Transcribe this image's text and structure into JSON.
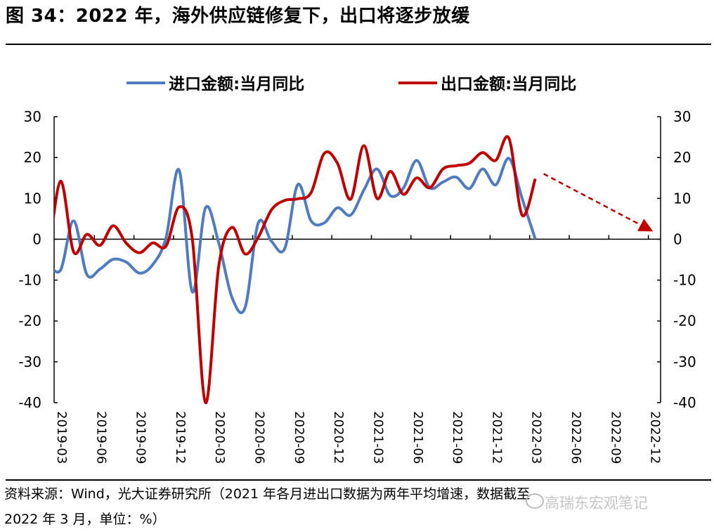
{
  "title": "图 34：2022 年，海外供应链修复下，出口将逐步放缓",
  "footer": {
    "line1": "资料来源：Wind，光大证券研究所（2021 年各月进出口数据为两年平均增速，数据截至",
    "line2": "2022 年 3 月，单位：%）",
    "watermark": "高瑞东宏观笔记"
  },
  "chart_data": {
    "type": "line",
    "title": "",
    "xlabel": "",
    "ylabel": "",
    "ylim": [
      -40,
      30
    ],
    "y_ticks": [
      "30",
      "20",
      "10",
      "0",
      "-10",
      "-20",
      "-30",
      "-40"
    ],
    "y_tick_values": [
      30,
      20,
      10,
      0,
      -10,
      -20,
      -30,
      -40
    ],
    "dual_axis": true,
    "x_tick_labels": [
      "2019-03",
      "2019-06",
      "2019-09",
      "2019-12",
      "2020-03",
      "2020-06",
      "2020-09",
      "2020-12",
      "2021-03",
      "2021-06",
      "2021-09",
      "2021-12",
      "2022-03",
      "2022-06",
      "2022-09",
      "2022-12"
    ],
    "x_range": [
      "2019-03",
      "2022-12"
    ],
    "legend_position": "top",
    "categories": [
      "2019-02",
      "2019-03",
      "2019-04",
      "2019-05",
      "2019-06",
      "2019-07",
      "2019-08",
      "2019-09",
      "2019-10",
      "2019-11",
      "2019-12",
      "2020-01",
      "2020-02",
      "2020-03",
      "2020-04",
      "2020-05",
      "2020-06",
      "2020-07",
      "2020-08",
      "2020-09",
      "2020-10",
      "2020-11",
      "2020-12",
      "2021-01",
      "2021-02",
      "2021-03",
      "2021-04",
      "2021-05",
      "2021-06",
      "2021-07",
      "2021-08",
      "2021-09",
      "2021-10",
      "2021-11",
      "2021-12",
      "2022-01",
      "2022-02",
      "2022-03"
    ],
    "series": [
      {
        "name": "进口金额:当月同比",
        "color": "#4f7cc0",
        "values": [
          -5.5,
          -7.6,
          4.5,
          -8.6,
          -7.3,
          -4.9,
          -5.6,
          -8.3,
          -6.2,
          0.3,
          16.9,
          -12.9,
          7.7,
          -0.9,
          -14.2,
          -16.7,
          4.0,
          -0.5,
          -2.3,
          13.4,
          4.5,
          4.0,
          7.7,
          5.9,
          12.0,
          17.2,
          10.7,
          12.5,
          19.3,
          12.6,
          14.0,
          15.2,
          12.4,
          17.2,
          13.3,
          19.8,
          10.0,
          0.0
        ]
      },
      {
        "name": "出口金额:当月同比",
        "color": "#c00000",
        "values": [
          -7.0,
          14.2,
          -3.1,
          1.2,
          -1.5,
          3.3,
          -1.0,
          -3.3,
          -0.9,
          -1.7,
          7.9,
          0.0,
          -40.0,
          -6.6,
          2.9,
          -3.6,
          0.5,
          7.2,
          9.5,
          9.9,
          11.4,
          21.0,
          18.6,
          9.8,
          22.9,
          10.0,
          16.6,
          11.0,
          15.0,
          12.6,
          17.2,
          18.0,
          18.6,
          21.2,
          19.3,
          24.7,
          5.9,
          14.8
        ]
      }
    ],
    "annotations": [
      {
        "type": "dashed-arrow",
        "color": "#c00000",
        "from": {
          "x": "2022-03",
          "y": 16
        },
        "to": {
          "x": "2022-12",
          "y": 2.5
        }
      }
    ]
  }
}
